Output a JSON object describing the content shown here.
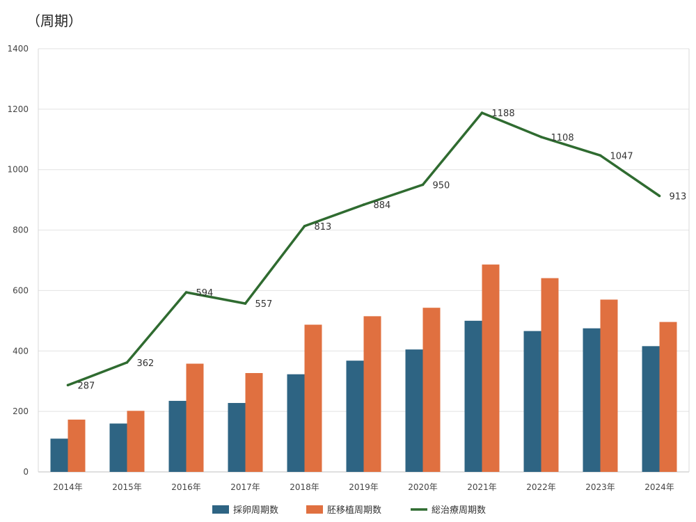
{
  "chart_data": {
    "type": "bar",
    "unit_label": "（周期）",
    "categories": [
      "2014年",
      "2015年",
      "2016年",
      "2017年",
      "2018年",
      "2019年",
      "2020年",
      "2021年",
      "2022年",
      "2023年",
      "2024年"
    ],
    "series": [
      {
        "name": "採卵周期数",
        "kind": "bar",
        "color": "#2e6483",
        "values": [
          110,
          160,
          235,
          228,
          323,
          368,
          405,
          500,
          466,
          475,
          416
        ]
      },
      {
        "name": "胚移植周期数",
        "kind": "bar",
        "color": "#e07040",
        "values": [
          173,
          202,
          358,
          327,
          487,
          515,
          543,
          686,
          641,
          570,
          496
        ]
      },
      {
        "name": "総治療周期数",
        "kind": "line",
        "color": "#2f6b30",
        "values": [
          287,
          362,
          594,
          557,
          813,
          884,
          950,
          1188,
          1108,
          1047,
          913
        ]
      }
    ],
    "ylim": [
      0,
      1400
    ],
    "yticks": [
      0,
      200,
      400,
      600,
      800,
      1000,
      1200,
      1400
    ],
    "grid": true,
    "legend_position": "bottom"
  }
}
